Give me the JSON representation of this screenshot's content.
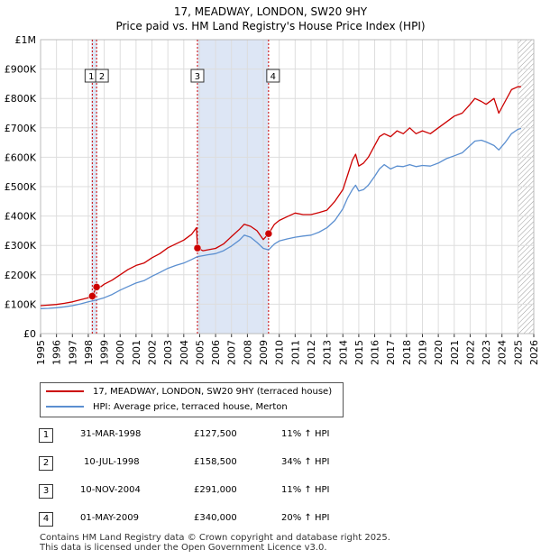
{
  "title": "17, MEADWAY, LONDON, SW20 9HY",
  "subtitle": "Price paid vs. HM Land Registry's House Price Index (HPI)",
  "colors": {
    "property": "#cc0000",
    "hpi": "#5b8fd0",
    "shade": "#dde6f5",
    "grid": "#dddddd",
    "marker": "#cc0000"
  },
  "legend": [
    {
      "label": "17, MEADWAY, LONDON, SW20 9HY (terraced house)",
      "color": "#cc0000"
    },
    {
      "label": "HPI: Average price, terraced house, Merton",
      "color": "#5b8fd0"
    }
  ],
  "sales": [
    {
      "num": "1",
      "date": "31-MAR-1998",
      "price": "£127,500",
      "hpi": "11% ↑ HPI"
    },
    {
      "num": "2",
      "date": "10-JUL-1998",
      "price": "£158,500",
      "hpi": "34% ↑ HPI"
    },
    {
      "num": "3",
      "date": "10-NOV-2004",
      "price": "£291,000",
      "hpi": "11% ↑ HPI"
    },
    {
      "num": "4",
      "date": "01-MAY-2009",
      "price": "£340,000",
      "hpi": "20% ↑ HPI"
    }
  ],
  "footer": {
    "line1": "Contains HM Land Registry data © Crown copyright and database right 2025.",
    "line2": "This data is licensed under the Open Government Licence v3.0."
  },
  "chart_data": {
    "type": "line",
    "title": "17, MEADWAY, LONDON, SW20 9HY",
    "subtitle": "Price paid vs. HM Land Registry's House Price Index (HPI)",
    "xlim": [
      1995,
      2026
    ],
    "ylim": [
      0,
      1000000
    ],
    "x_ticks": [
      1995,
      1996,
      1997,
      1998,
      1999,
      2000,
      2001,
      2002,
      2003,
      2004,
      2005,
      2006,
      2007,
      2008,
      2009,
      2010,
      2011,
      2012,
      2013,
      2014,
      2015,
      2016,
      2017,
      2018,
      2019,
      2020,
      2021,
      2022,
      2023,
      2024,
      2025,
      2026
    ],
    "y_ticks": [
      {
        "value": 0,
        "label": "£0"
      },
      {
        "value": 100000,
        "label": "£100K"
      },
      {
        "value": 200000,
        "label": "£200K"
      },
      {
        "value": 300000,
        "label": "£300K"
      },
      {
        "value": 400000,
        "label": "£400K"
      },
      {
        "value": 500000,
        "label": "£500K"
      },
      {
        "value": 600000,
        "label": "£600K"
      },
      {
        "value": 700000,
        "label": "£700K"
      },
      {
        "value": 800000,
        "label": "£800K"
      },
      {
        "value": 900000,
        "label": "£900K"
      },
      {
        "value": 1000000,
        "label": "£1M"
      }
    ],
    "grid": true,
    "shaded_ranges": [
      [
        1998.2,
        1998.55
      ],
      [
        2004.86,
        2009.33
      ]
    ],
    "future_hatch_from": 2025.0,
    "sale_markers": [
      {
        "num": "1",
        "x": 1998.25,
        "y": 127500
      },
      {
        "num": "2",
        "x": 1998.52,
        "y": 158500
      },
      {
        "num": "3",
        "x": 2004.86,
        "y": 291000
      },
      {
        "num": "4",
        "x": 2009.33,
        "y": 340000
      }
    ],
    "series": [
      {
        "name": "17, MEADWAY, LONDON, SW20 9HY (terraced house)",
        "color": "#cc0000",
        "x": [
          1995.0,
          1995.5,
          1996.0,
          1996.5,
          1997.0,
          1997.5,
          1998.0,
          1998.25,
          1998.52,
          1998.8,
          1999.0,
          1999.5,
          2000.0,
          2000.5,
          2001.0,
          2001.5,
          2002.0,
          2002.5,
          2003.0,
          2003.5,
          2004.0,
          2004.5,
          2004.8,
          2004.86,
          2005.2,
          2005.5,
          2006.0,
          2006.5,
          2007.0,
          2007.5,
          2007.8,
          2008.2,
          2008.6,
          2009.0,
          2009.33,
          2009.7,
          2010.0,
          2010.5,
          2011.0,
          2011.5,
          2012.0,
          2012.5,
          2013.0,
          2013.5,
          2014.0,
          2014.3,
          2014.6,
          2014.8,
          2015.0,
          2015.3,
          2015.6,
          2016.0,
          2016.3,
          2016.6,
          2017.0,
          2017.4,
          2017.8,
          2018.2,
          2018.6,
          2019.0,
          2019.5,
          2020.0,
          2020.5,
          2021.0,
          2021.5,
          2022.0,
          2022.3,
          2022.7,
          2023.0,
          2023.5,
          2023.8,
          2024.2,
          2024.6,
          2025.0,
          2025.2
        ],
        "values": [
          95000,
          97000,
          99000,
          103000,
          108000,
          115000,
          122000,
          127500,
          158500,
          160000,
          168000,
          182000,
          200000,
          218000,
          232000,
          240000,
          258000,
          272000,
          292000,
          305000,
          318000,
          338000,
          360000,
          291000,
          282000,
          285000,
          290000,
          305000,
          330000,
          355000,
          372000,
          365000,
          350000,
          320000,
          340000,
          372000,
          385000,
          398000,
          410000,
          405000,
          405000,
          412000,
          420000,
          450000,
          490000,
          540000,
          590000,
          610000,
          570000,
          580000,
          600000,
          640000,
          670000,
          680000,
          670000,
          690000,
          680000,
          700000,
          680000,
          690000,
          680000,
          700000,
          720000,
          740000,
          750000,
          780000,
          800000,
          790000,
          780000,
          800000,
          750000,
          790000,
          830000,
          840000,
          840000
        ]
      },
      {
        "name": "HPI: Average price, terraced house, Merton",
        "color": "#5b8fd0",
        "x": [
          1995.0,
          1995.5,
          1996.0,
          1996.5,
          1997.0,
          1997.5,
          1998.0,
          1998.5,
          1999.0,
          1999.5,
          2000.0,
          2000.5,
          2001.0,
          2001.5,
          2002.0,
          2002.5,
          2003.0,
          2003.5,
          2004.0,
          2004.5,
          2004.86,
          2005.2,
          2005.5,
          2006.0,
          2006.5,
          2007.0,
          2007.5,
          2007.8,
          2008.2,
          2008.6,
          2009.0,
          2009.33,
          2009.7,
          2010.0,
          2010.5,
          2011.0,
          2011.5,
          2012.0,
          2012.5,
          2013.0,
          2013.5,
          2014.0,
          2014.3,
          2014.6,
          2014.8,
          2015.0,
          2015.3,
          2015.6,
          2016.0,
          2016.3,
          2016.6,
          2017.0,
          2017.4,
          2017.8,
          2018.2,
          2018.6,
          2019.0,
          2019.5,
          2020.0,
          2020.5,
          2021.0,
          2021.5,
          2022.0,
          2022.3,
          2022.7,
          2023.0,
          2023.5,
          2023.8,
          2024.2,
          2024.6,
          2025.0,
          2025.2
        ],
        "values": [
          85000,
          86000,
          88000,
          91000,
          95000,
          101000,
          108000,
          114000,
          122000,
          133000,
          148000,
          160000,
          172000,
          180000,
          195000,
          208000,
          222000,
          232000,
          240000,
          252000,
          262000,
          265000,
          268000,
          272000,
          282000,
          298000,
          318000,
          335000,
          328000,
          310000,
          290000,
          285000,
          305000,
          315000,
          322000,
          328000,
          332000,
          335000,
          345000,
          360000,
          385000,
          425000,
          462000,
          490000,
          505000,
          485000,
          490000,
          505000,
          535000,
          560000,
          575000,
          560000,
          570000,
          568000,
          575000,
          568000,
          572000,
          570000,
          580000,
          595000,
          605000,
          615000,
          640000,
          655000,
          658000,
          652000,
          640000,
          625000,
          650000,
          680000,
          695000,
          698000
        ]
      }
    ]
  }
}
